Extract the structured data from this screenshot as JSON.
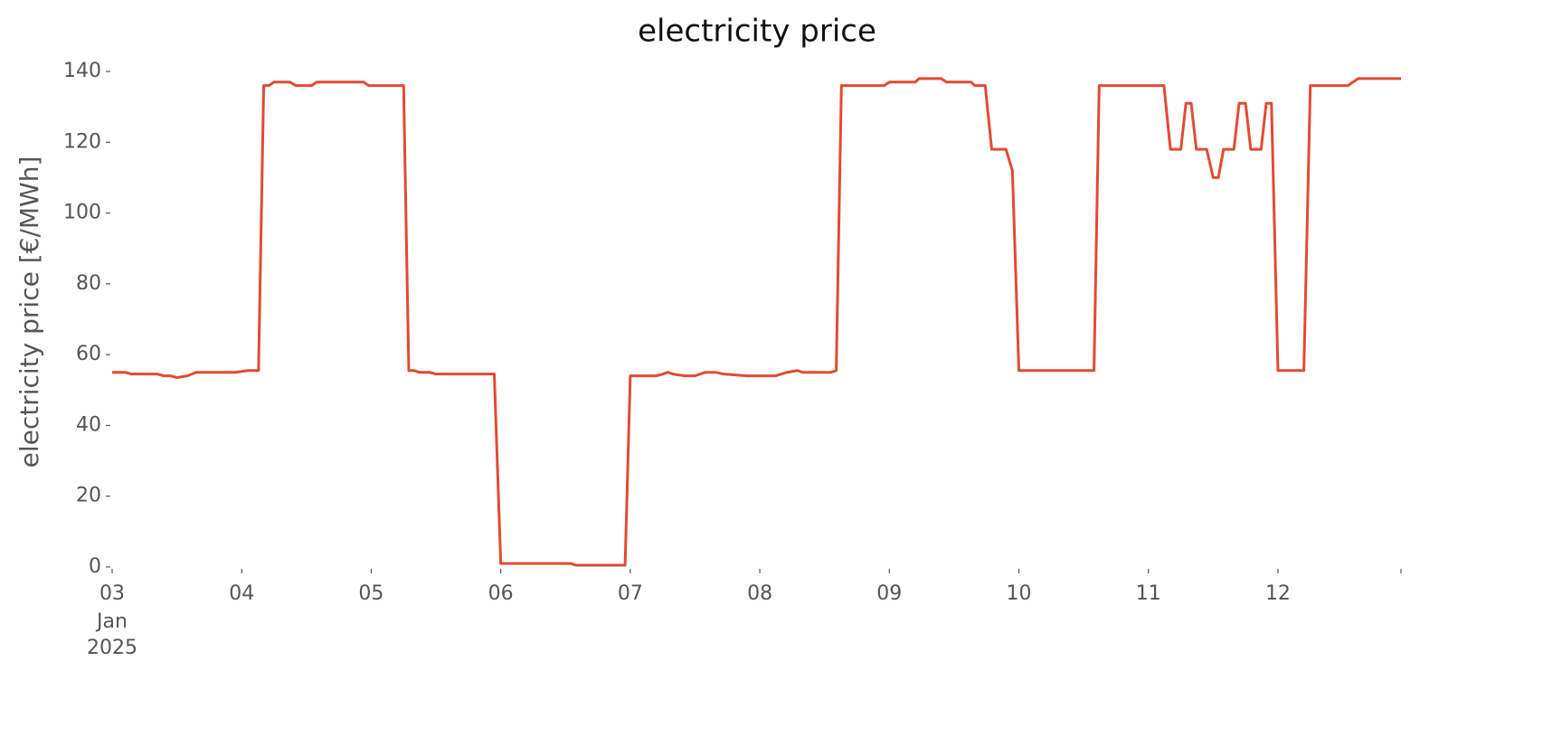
{
  "chart_data": {
    "type": "line",
    "title": "electricity price",
    "y_label": "electricity price [€/MWh]",
    "x": [
      3.0,
      3.1,
      3.15,
      3.35,
      3.4,
      3.45,
      3.5,
      3.58,
      3.65,
      3.95,
      4.05,
      4.13,
      4.17,
      4.21,
      4.25,
      4.37,
      4.42,
      4.54,
      4.58,
      4.94,
      4.98,
      5.25,
      5.29,
      5.33,
      5.37,
      5.45,
      5.5,
      5.95,
      6.0,
      6.54,
      6.58,
      6.96,
      7.0,
      7.2,
      7.25,
      7.29,
      7.33,
      7.42,
      7.5,
      7.58,
      7.66,
      7.72,
      7.9,
      8.12,
      8.21,
      8.29,
      8.33,
      8.55,
      8.59,
      8.63,
      8.96,
      9.0,
      9.2,
      9.23,
      9.4,
      9.44,
      9.63,
      9.66,
      9.74,
      9.79,
      9.9,
      9.95,
      10.0,
      10.58,
      10.62,
      11.12,
      11.17,
      11.25,
      11.29,
      11.33,
      11.37,
      11.45,
      11.5,
      11.54,
      11.58,
      11.66,
      11.7,
      11.75,
      11.79,
      11.87,
      11.91,
      11.95,
      12.0,
      12.2,
      12.25,
      12.54,
      12.62,
      12.95
    ],
    "series": [
      {
        "name": "electricity price",
        "color": "#e24a33",
        "values": [
          55,
          55,
          54.5,
          54.5,
          54,
          54,
          53.5,
          54,
          55,
          55,
          55.5,
          55.5,
          136,
          136,
          137,
          137,
          136,
          136,
          137,
          137,
          136,
          136,
          55.5,
          55.5,
          55,
          55,
          54.5,
          54.5,
          1,
          1,
          0.5,
          0.5,
          54,
          54,
          54.5,
          55,
          54.5,
          54,
          54,
          55,
          55,
          54.5,
          54,
          54,
          55,
          55.5,
          55,
          55,
          55.5,
          136,
          136,
          137,
          137,
          138,
          138,
          137,
          137,
          136,
          136,
          118,
          118,
          112,
          55.5,
          55.5,
          136,
          136,
          118,
          118,
          131,
          131,
          118,
          118,
          110,
          110,
          118,
          118,
          131,
          131,
          118,
          118,
          131,
          131,
          55.5,
          55.5,
          136,
          136,
          138,
          138
        ]
      }
    ],
    "xlim": [
      3,
      12.95
    ],
    "xticks": [
      {
        "value": 3,
        "label": "03"
      },
      {
        "value": 4,
        "label": "04"
      },
      {
        "value": 5,
        "label": "05"
      },
      {
        "value": 6,
        "label": "06"
      },
      {
        "value": 7,
        "label": "07"
      },
      {
        "value": 8,
        "label": "08"
      },
      {
        "value": 9,
        "label": "09"
      },
      {
        "value": 10,
        "label": "10"
      },
      {
        "value": 11,
        "label": "11"
      },
      {
        "value": 12,
        "label": "12"
      },
      {
        "value": 12.95,
        "label": null
      }
    ],
    "x_sublabels": [
      "Jan",
      "2025"
    ],
    "ylim": [
      0,
      140
    ],
    "yticks": [
      0,
      20,
      40,
      60,
      80,
      100,
      120,
      140
    ],
    "grid": false
  }
}
